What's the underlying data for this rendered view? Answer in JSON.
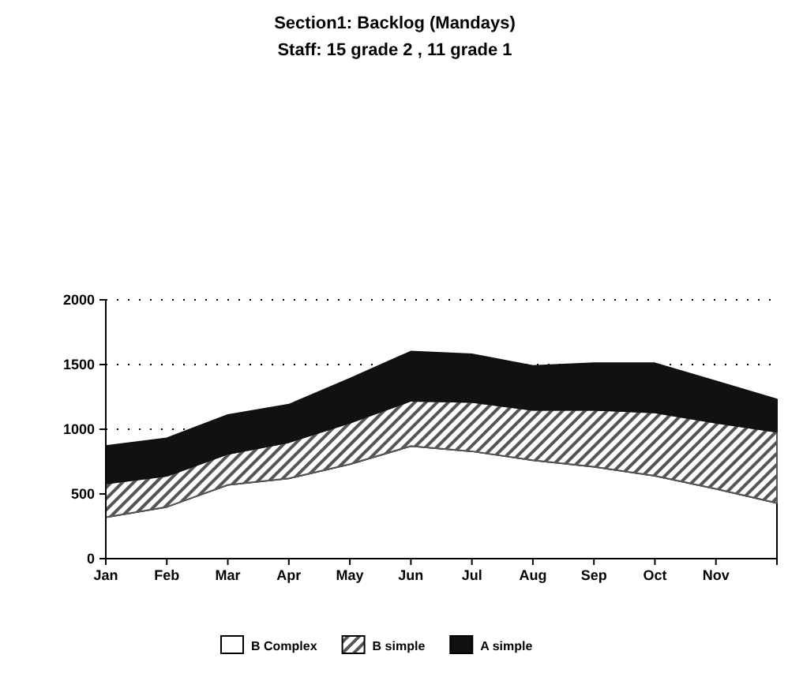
{
  "chart_data": {
    "type": "area",
    "title": "Section1: Backlog (Mandays)",
    "subtitle": "Staff: 15 grade 2 , 11 grade 1",
    "categories": [
      "Jan",
      "Feb",
      "Mar",
      "Apr",
      "May",
      "Jun",
      "Jul",
      "Aug",
      "Sep",
      "Oct",
      "Nov",
      null
    ],
    "stacked": true,
    "series": [
      {
        "name": "B Complex",
        "color": "#ffffff",
        "values": [
          320,
          400,
          570,
          620,
          730,
          870,
          830,
          760,
          710,
          640,
          540,
          430
        ]
      },
      {
        "name": "B simple",
        "color": "#555555",
        "values": [
          260,
          240,
          240,
          280,
          320,
          350,
          380,
          390,
          440,
          490,
          510,
          550
        ]
      },
      {
        "name": "A simple",
        "color": "#111111",
        "values": [
          290,
          290,
          300,
          290,
          340,
          380,
          370,
          340,
          360,
          380,
          320,
          250
        ]
      }
    ],
    "ylim": [
      0,
      2000
    ],
    "yticks": [
      0,
      500,
      1000,
      1500,
      2000
    ],
    "grid": "y",
    "legend": "bottom"
  }
}
